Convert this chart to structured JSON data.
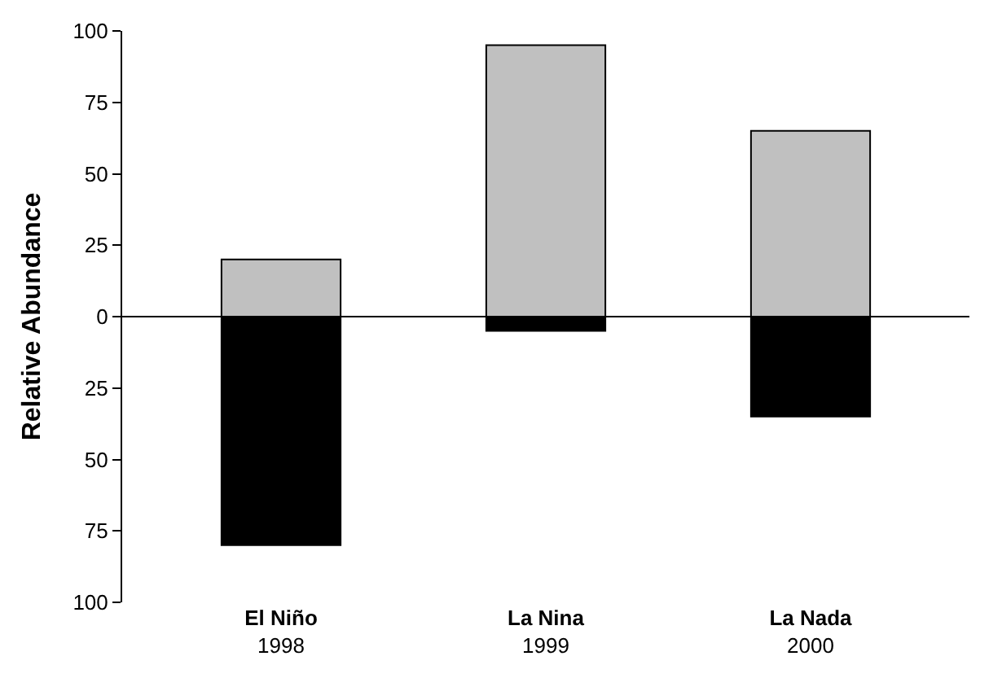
{
  "chart_data": {
    "type": "bar",
    "ylabel": "Relative Abundance",
    "categories": [
      "El Niño\n1998",
      "La Nina\n1999",
      "La Nada\n2000"
    ],
    "stacked": true,
    "series": [
      {
        "color": "#c0c0c0",
        "values": [
          20,
          95,
          65
        ]
      },
      {
        "color": "#000000",
        "values": [
          -80,
          -5,
          -35
        ]
      }
    ],
    "ylim": [
      -100,
      100
    ],
    "yticks": [
      {
        "value": -100,
        "label": "100"
      },
      {
        "value": -75,
        "label": "75"
      },
      {
        "value": -50,
        "label": "50"
      },
      {
        "value": -25,
        "label": "25"
      },
      0,
      25,
      50,
      75,
      100
    ],
    "ref_lines": [
      {
        "axis": "y",
        "value": 0,
        "color": "#000000"
      }
    ]
  }
}
